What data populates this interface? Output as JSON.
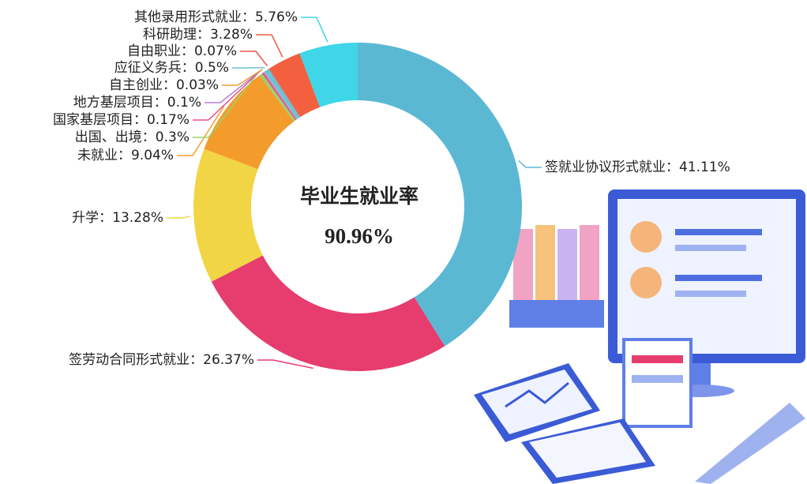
{
  "chart_data": {
    "type": "donut",
    "title": "毕业生就业率",
    "subtitle": "90.96%",
    "values": [
      41.11,
      26.37,
      13.28,
      9.04,
      0.3,
      0.17,
      0.1,
      0.03,
      0.5,
      0.07,
      3.28,
      5.76
    ],
    "value_labels": [
      "签就业协议形式就业：41.11%",
      "签劳动合同形式就业：26.37%",
      "升学：13.28%",
      "未就业：9.04%",
      "出国、出境：0.3%",
      "国家基层项目：0.17%",
      "地方基层项目：0.1%",
      "自主创业：0.03%",
      "应征义务兵：0.5%",
      "自由职业：0.07%",
      "科研助理：3.28%",
      "其他录用形式就业：5.76%"
    ],
    "colors": [
      "#5bb8d3",
      "#e63c6e",
      "#f2d544",
      "#f39c2b",
      "#9bd36a",
      "#e94f8a",
      "#b57ed6",
      "#f0a030",
      "#6cc3d6",
      "#e55353",
      "#f2603f",
      "#3fd6e8"
    ]
  }
}
